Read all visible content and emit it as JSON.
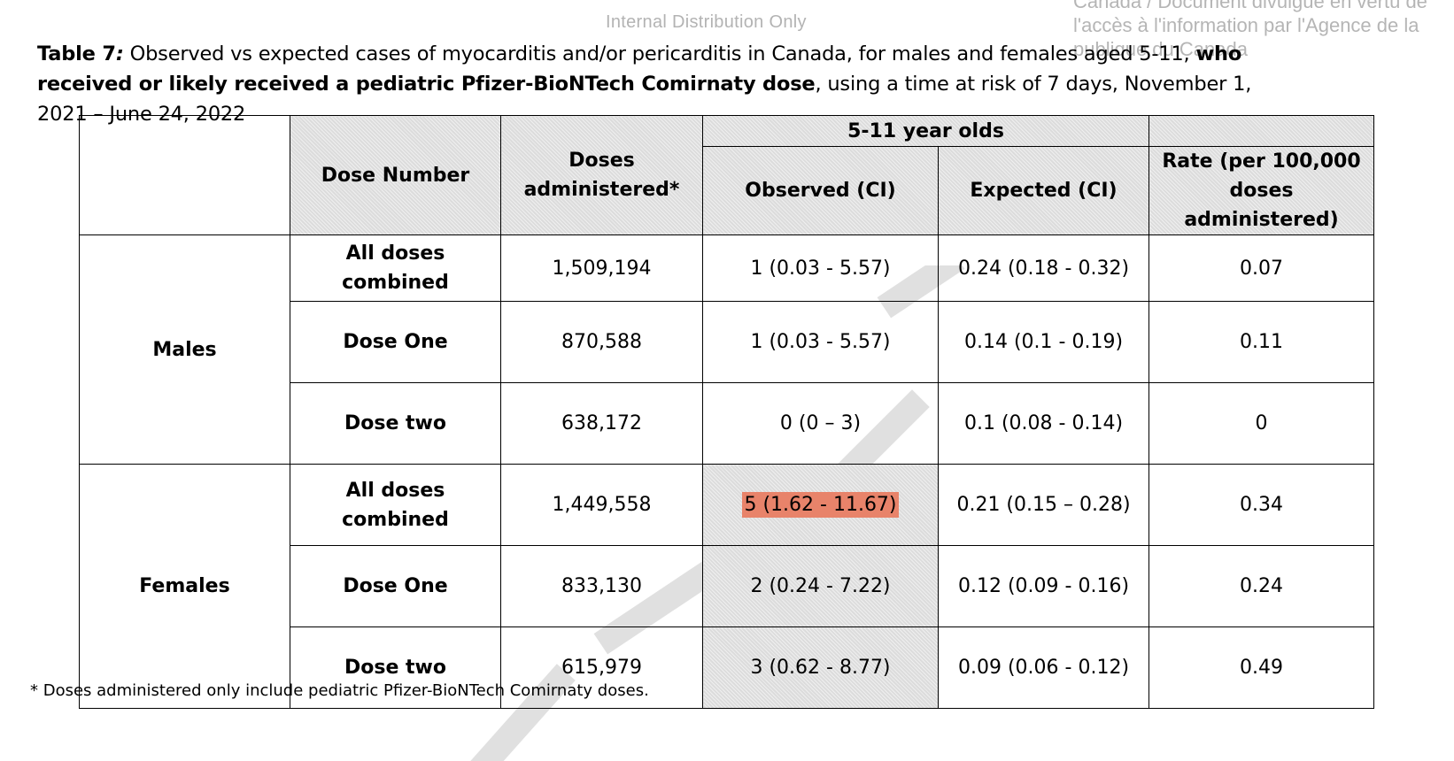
{
  "watermarks": {
    "internal": "Internal Distribution Only",
    "right_line1": "Canada / Document divulgué en vertu de",
    "right_line2": "l'accès à l'information par l'Agence de la",
    "right_line3": "publique du Canada"
  },
  "caption": {
    "label": "Table 7",
    "colon": ":",
    "text1": " Observed vs expected cases of myocarditis and/or pericarditis in Canada, for males and females aged 5-11, ",
    "bold2": "who received or likely received a pediatric Pfizer-BioNTech Comirnaty dose",
    "text3": ", using a time at risk of 7 days, November 1, 2021 – June 24, 2022"
  },
  "table": {
    "headers": {
      "dose_number": "Dose Number",
      "doses_administered": "Doses administered*",
      "group": "5-11 year olds",
      "observed": "Observed (CI)",
      "expected": "Expected (CI)",
      "rate": "Rate (per 100,000 doses administered)"
    },
    "groups": [
      {
        "sex": "Males",
        "rows": [
          {
            "dose": "All doses combined",
            "administered": "1,509,194",
            "observed": "1 (0.03 - 5.57)",
            "expected": "0.24 (0.18 - 0.32)",
            "rate": "0.07"
          },
          {
            "dose": "Dose One",
            "administered": "870,588",
            "observed": "1 (0.03 - 5.57)",
            "expected": "0.14 (0.1 - 0.19)",
            "rate": "0.11"
          },
          {
            "dose": "Dose two",
            "administered": "638,172",
            "observed": "0 (0 – 3)",
            "expected": "0.1 (0.08 - 0.14)",
            "rate": "0"
          }
        ]
      },
      {
        "sex": "Females",
        "rows": [
          {
            "dose": "All doses combined",
            "administered": "1,449,558",
            "observed": "5 (1.62 - 11.67)",
            "expected": "0.21 (0.15 – 0.28)",
            "rate": "0.34"
          },
          {
            "dose": "Dose One",
            "administered": "833,130",
            "observed": "2 (0.24 - 7.22)",
            "expected": "0.12 (0.09 - 0.16)",
            "rate": "0.24"
          },
          {
            "dose": "Dose two",
            "administered": "615,979",
            "observed": "3 (0.62 - 8.77)",
            "expected": "0.09 (0.06 - 0.12)",
            "rate": "0.49"
          }
        ]
      }
    ]
  },
  "footnote": "* Doses administered only include pediatric Pfizer-BioNTech Comirnaty doses.",
  "colors": {
    "highlight": "#e8836a",
    "header_fill": "#dcdcdc",
    "watermark_text": "#b3b3b3"
  }
}
